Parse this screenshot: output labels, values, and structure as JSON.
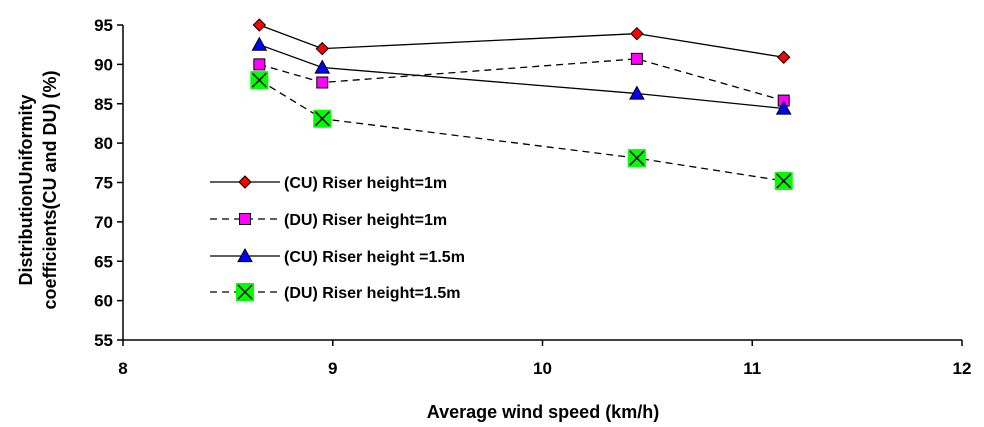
{
  "chart_data": {
    "type": "line",
    "xlabel": "Average wind speed (km/h)",
    "ylabel_lines": [
      "DistributionUniformity",
      "coefficients(CU and DU) (%)"
    ],
    "xlim": [
      8,
      12
    ],
    "ylim": [
      55,
      95
    ],
    "xticks": [
      8,
      9,
      10,
      11,
      12
    ],
    "yticks": [
      55,
      60,
      65,
      70,
      75,
      80,
      85,
      90,
      95
    ],
    "grid": false,
    "legend_position": "center-left",
    "series": [
      {
        "name": "(CU) Riser height=1m",
        "x": [
          8.65,
          8.95,
          10.45,
          11.15
        ],
        "y": [
          95.0,
          92.0,
          93.9,
          90.9
        ],
        "color": "#ff0000",
        "marker": "diamond",
        "dash": "solid"
      },
      {
        "name": "(DU) Riser height=1m",
        "x": [
          8.65,
          8.95,
          10.45,
          11.15
        ],
        "y": [
          90.0,
          87.7,
          90.7,
          85.4
        ],
        "color": "#ff00ff",
        "marker": "square",
        "dash": "dashed"
      },
      {
        "name": "(CU) Riser height =1.5m",
        "x": [
          8.65,
          8.95,
          10.45,
          11.15
        ],
        "y": [
          92.5,
          89.6,
          86.3,
          84.4
        ],
        "color": "#0000ff",
        "marker": "triangle",
        "dash": "solid"
      },
      {
        "name": "(DU) Riser height=1.5m",
        "x": [
          8.65,
          8.95,
          10.45,
          11.15
        ],
        "y": [
          88.0,
          83.1,
          78.1,
          75.2
        ],
        "color": "#00ff00",
        "marker": "x-square",
        "dash": "dashed"
      }
    ]
  }
}
